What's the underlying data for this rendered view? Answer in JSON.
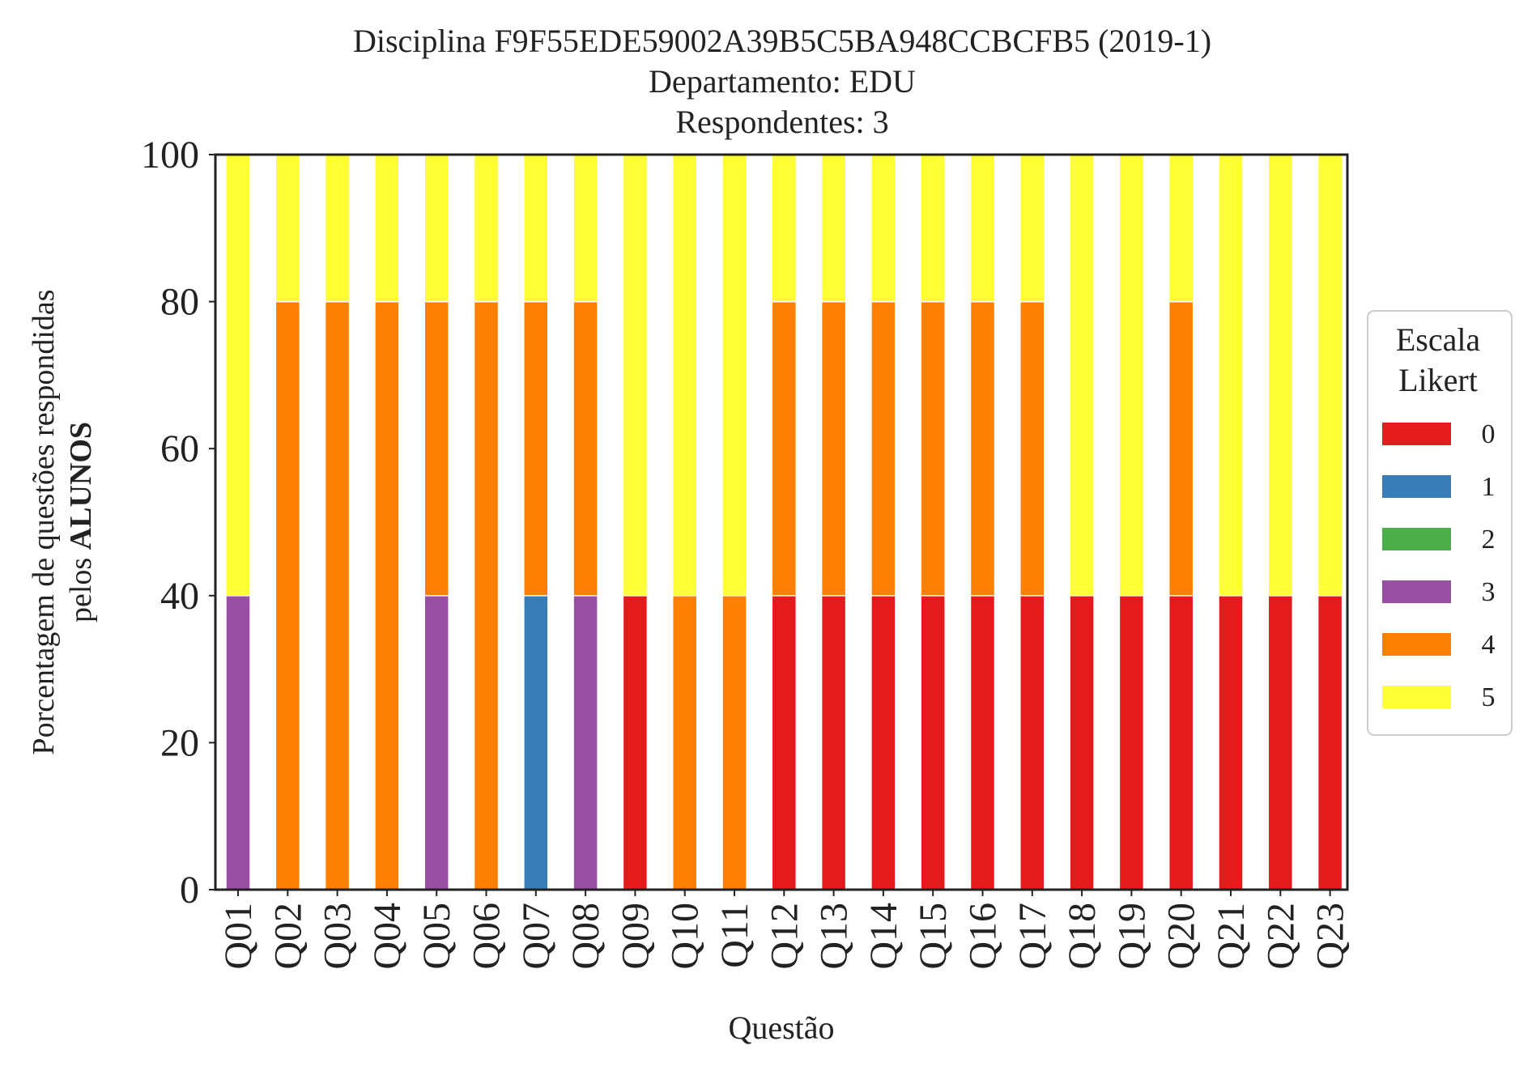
{
  "chart_data": {
    "type": "bar",
    "stacked": true,
    "title_lines": [
      "Disciplina F9F55EDE59002A39B5C5BA948CCBCFB5 (2019-1)",
      "Departamento: EDU",
      "Respondentes: 3"
    ],
    "xlabel": "Questão",
    "ylabel_line1": "Porcentagem de questões respondidas",
    "ylabel_line2_prefix": "pelos ",
    "ylabel_line2_bold": "ALUNOS",
    "ylim": [
      0,
      100
    ],
    "yticks": [
      0,
      20,
      40,
      60,
      80,
      100
    ],
    "grid": false,
    "legend": {
      "title_lines": [
        "Escala",
        "Likert"
      ],
      "placement": "right-center"
    },
    "categories": [
      "Q01",
      "Q02",
      "Q03",
      "Q04",
      "Q05",
      "Q06",
      "Q07",
      "Q08",
      "Q09",
      "Q10",
      "Q11",
      "Q12",
      "Q13",
      "Q14",
      "Q15",
      "Q16",
      "Q17",
      "Q18",
      "Q19",
      "Q20",
      "Q21",
      "Q22",
      "Q23"
    ],
    "series": [
      {
        "name": "0",
        "color": "#e41a1c",
        "values": [
          0,
          0,
          0,
          0,
          0,
          0,
          0,
          0,
          40,
          0,
          0,
          40,
          40,
          40,
          40,
          40,
          40,
          40,
          40,
          40,
          40,
          40,
          40
        ]
      },
      {
        "name": "1",
        "color": "#377eb8",
        "values": [
          0,
          0,
          0,
          0,
          0,
          0,
          40,
          0,
          0,
          0,
          0,
          0,
          0,
          0,
          0,
          0,
          0,
          0,
          0,
          0,
          0,
          0,
          0
        ]
      },
      {
        "name": "2",
        "color": "#4daf4a",
        "values": [
          0,
          0,
          0,
          0,
          0,
          0,
          0,
          0,
          0,
          0,
          0,
          0,
          0,
          0,
          0,
          0,
          0,
          0,
          0,
          0,
          0,
          0,
          0
        ]
      },
      {
        "name": "3",
        "color": "#984ea3",
        "values": [
          40,
          0,
          0,
          0,
          40,
          0,
          0,
          40,
          0,
          0,
          0,
          0,
          0,
          0,
          0,
          0,
          0,
          0,
          0,
          0,
          0,
          0,
          0
        ]
      },
      {
        "name": "4",
        "color": "#ff7f00",
        "values": [
          0,
          80,
          80,
          80,
          40,
          80,
          40,
          40,
          0,
          40,
          40,
          40,
          40,
          40,
          40,
          40,
          40,
          0,
          0,
          40,
          0,
          0,
          0
        ]
      },
      {
        "name": "5",
        "color": "#ffff33",
        "values": [
          60,
          20,
          20,
          20,
          20,
          20,
          20,
          20,
          60,
          60,
          60,
          20,
          20,
          20,
          20,
          20,
          20,
          60,
          60,
          20,
          60,
          60,
          60
        ]
      }
    ]
  }
}
